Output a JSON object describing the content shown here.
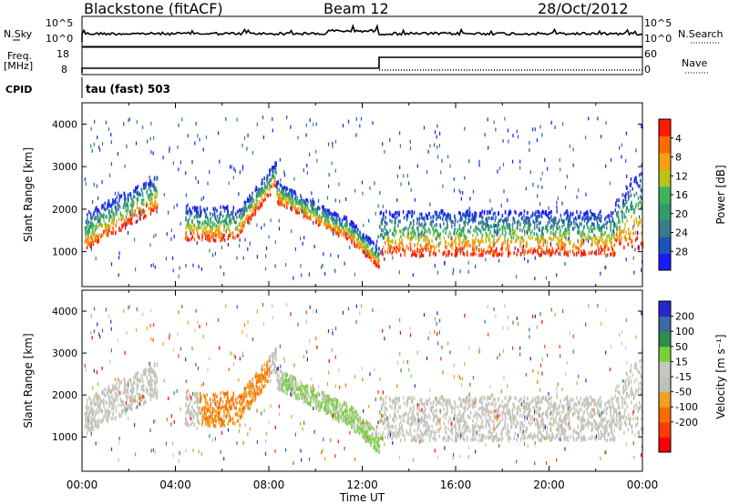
{
  "header": {
    "station": "Blackstone (fitACF)",
    "beam": "Beam 12",
    "date": "28/Oct/2012"
  },
  "panels": {
    "nsky_label": "N.Sky",
    "nsky_high": "10^5",
    "nsky_low": "10^0",
    "nsearch_label": "N.Search",
    "nsearch_high": "10^5",
    "nsearch_low": "10^0",
    "freq_label_1": "Freq.",
    "freq_label_2": "[MHz]",
    "freq_high": "18",
    "freq_low": "8",
    "nave_label": "Nave",
    "nave_high": "60",
    "nave_low": "0",
    "cpid_label": "CPID",
    "cpid_value": "tau (fast) 503"
  },
  "colors": {
    "power": [
      "#1a1aff",
      "#1a55bb",
      "#3a7a8a",
      "#2f9c6e",
      "#3fb25e",
      "#b8c41a",
      "#f5a00d",
      "#ff6a00",
      "#ff1a00"
    ],
    "velocity": [
      "#2828c8",
      "#3c6aa6",
      "#2e8e4e",
      "#78d13a",
      "#c8c8c0",
      "#c0c0b8",
      "#f0a020",
      "#ff6a00",
      "#ff3c00",
      "#ff0000"
    ]
  },
  "chart_data": [
    {
      "type": "heatmap",
      "name": "power",
      "ylabel": "Slant Range [km]",
      "yticks": [
        "1000",
        "2000",
        "3000",
        "4000"
      ],
      "ylim": [
        180,
        4500
      ],
      "xlim": [
        0,
        24
      ],
      "colorbar_label": "Power [dB]",
      "colorbar_ticks": [
        "4",
        "8",
        "12",
        "16",
        "20",
        "24",
        "28"
      ],
      "colorbar_range": [
        0,
        32
      ]
    },
    {
      "type": "heatmap",
      "name": "velocity",
      "ylabel": "Slant Range [km]",
      "yticks": [
        "1000",
        "2000",
        "3000",
        "4000"
      ],
      "ylim": [
        180,
        4500
      ],
      "xlim": [
        0,
        24
      ],
      "xlabel": "Time UT",
      "xticks": [
        "00:00",
        "04:00",
        "08:00",
        "12:00",
        "16:00",
        "20:00",
        "00:00"
      ],
      "colorbar_label": "Velocity [m s⁻¹]",
      "colorbar_ticks": [
        "200",
        "100",
        "50",
        "15",
        "-15",
        "-50",
        "-100",
        "-200"
      ]
    }
  ]
}
